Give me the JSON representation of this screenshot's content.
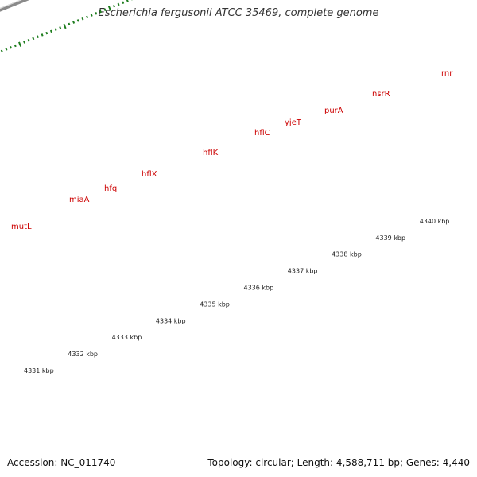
{
  "title": "Escherichia fergusonii ATCC 35469, complete genome",
  "footer": {
    "accession": "Accession: NC_011740",
    "summary": "Topology: circular; Length: 4,588,711 bp; Genes: 4,440"
  },
  "colors": {
    "cds": "#ff1a1a",
    "gene_label": "#cc0000",
    "tick": "#1e7d1e",
    "backbone": "#8a8a8a"
  },
  "genes": [
    {
      "name": "mutL",
      "color": "#ee1f9b"
    },
    {
      "name": "miaA",
      "color": "#f28a8a"
    },
    {
      "name": "hfq",
      "color": "#c4c4c4"
    },
    {
      "name": "hflX",
      "color": "#c4c4c4"
    },
    {
      "name": "hflK",
      "color": "#b2ae7a"
    },
    {
      "name": "hflC",
      "color": "#b2ae7a"
    },
    {
      "name": "yjeT",
      "color": "#5f5f5f"
    },
    {
      "name": "purA",
      "color": "#1aaee8"
    },
    {
      "name": "nsrR",
      "color": "#f5910f"
    },
    {
      "name": "rnr",
      "color": "#f5910f"
    }
  ],
  "kbp_labels": [
    "4331 kbp",
    "4332 kbp",
    "4333 kbp",
    "4334 kbp",
    "4335 kbp",
    "4336 kbp",
    "4337 kbp",
    "4338 kbp",
    "4339 kbp",
    "4340 kbp"
  ]
}
